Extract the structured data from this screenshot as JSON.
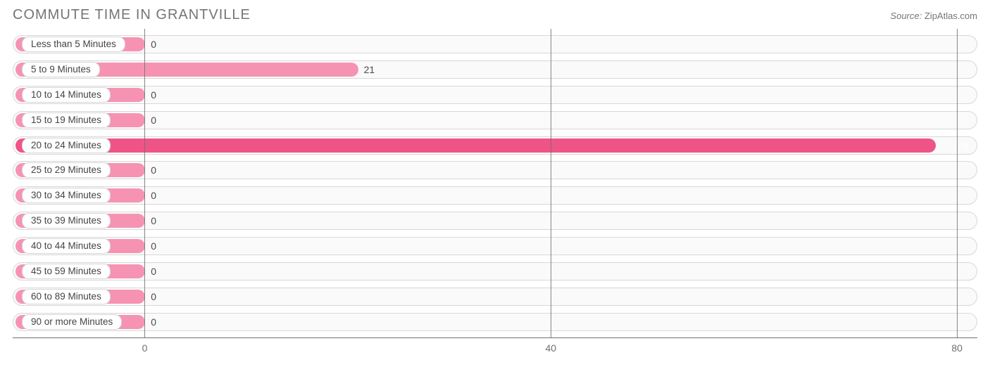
{
  "header": {
    "title": "COMMUTE TIME IN GRANTVILLE",
    "source_label": "Source:",
    "source_value": "ZipAtlas.com"
  },
  "chart": {
    "type": "bar-horizontal",
    "background_color": "#ffffff",
    "track_bg": "#fafafa",
    "track_border": "#d8d8d8",
    "grid_color": "#707070",
    "label_fontsize": 13.5,
    "value_fontsize": 14,
    "title_fontsize": 20,
    "title_color": "#757575",
    "bar_colors": [
      "#f693b3",
      "#ee5586"
    ],
    "x_axis": {
      "min": -13,
      "max": 82,
      "ticks": [
        0,
        40,
        80
      ]
    },
    "categories": [
      {
        "label": "Less than 5 Minutes",
        "value": 0
      },
      {
        "label": "5 to 9 Minutes",
        "value": 21
      },
      {
        "label": "10 to 14 Minutes",
        "value": 0
      },
      {
        "label": "15 to 19 Minutes",
        "value": 0
      },
      {
        "label": "20 to 24 Minutes",
        "value": 78
      },
      {
        "label": "25 to 29 Minutes",
        "value": 0
      },
      {
        "label": "30 to 34 Minutes",
        "value": 0
      },
      {
        "label": "35 to 39 Minutes",
        "value": 0
      },
      {
        "label": "40 to 44 Minutes",
        "value": 0
      },
      {
        "label": "45 to 59 Minutes",
        "value": 0
      },
      {
        "label": "60 to 89 Minutes",
        "value": 0
      },
      {
        "label": "90 or more Minutes",
        "value": 0
      }
    ]
  }
}
